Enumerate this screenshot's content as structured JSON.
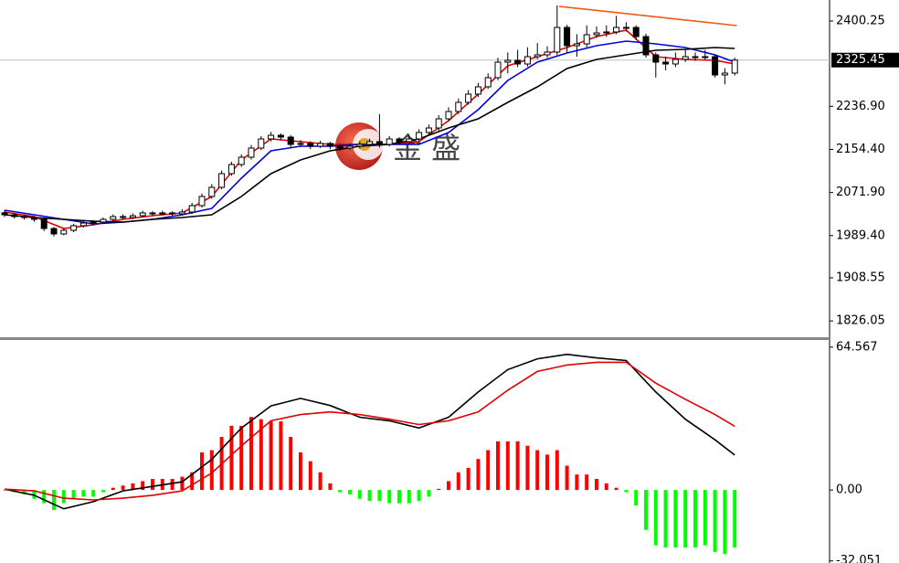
{
  "chart_data": [
    {
      "type": "candlestick",
      "up_color": "#ffffff",
      "down_color": "#000000",
      "last_price": 2325.45,
      "ylim": [
        1793,
        2440.5
      ],
      "yticks": [
        {
          "value": 2400.25,
          "label": "2400.25"
        },
        {
          "value": 2236.9,
          "label": "2236.90"
        },
        {
          "value": 2154.4,
          "label": "2154.40"
        },
        {
          "value": 2071.9,
          "label": "2071.90"
        },
        {
          "value": 1989.4,
          "label": "1989.40"
        },
        {
          "value": 1908.55,
          "label": "1908.55"
        },
        {
          "value": 1826.05,
          "label": "1826.05"
        }
      ],
      "candles": [
        [
          2033,
          2038,
          2025,
          2029.3
        ],
        [
          2029.3,
          2032,
          2022,
          2025.8
        ],
        [
          2025.8,
          2030,
          2020,
          2024.0
        ],
        [
          2024.0,
          2027,
          2016,
          2020.5
        ],
        [
          2020.5,
          2024,
          1998,
          2003.0
        ],
        [
          2003.0,
          2006,
          1988,
          1992.5
        ],
        [
          1992.5,
          2003,
          1990,
          1999.5
        ],
        [
          1999.5,
          2012,
          1996,
          2008.3
        ],
        [
          2008.3,
          2017,
          2005,
          2013.5
        ],
        [
          2013.5,
          2019,
          2010,
          2015.3
        ],
        [
          2015.3,
          2024,
          2012,
          2020.5
        ],
        [
          2020.5,
          2030,
          2017,
          2025.8
        ],
        [
          2025.8,
          2030,
          2020,
          2024.0
        ],
        [
          2024.0,
          2032,
          2021,
          2027.5
        ],
        [
          2027.5,
          2037,
          2024,
          2032.8
        ],
        [
          2032.8,
          2036,
          2027,
          2031.0
        ],
        [
          2031.0,
          2037,
          2028,
          2032.8
        ],
        [
          2032.8,
          2036,
          2027,
          2031.0
        ],
        [
          2031.0,
          2040,
          2028,
          2034.5
        ],
        [
          2034.5,
          2052,
          2031,
          2046.8
        ],
        [
          2046.8,
          2070,
          2043,
          2064.3
        ],
        [
          2064.3,
          2088,
          2060,
          2081.8
        ],
        [
          2081.8,
          2114,
          2078,
          2108.0
        ],
        [
          2108.0,
          2131,
          2104,
          2125.5
        ],
        [
          2125.5,
          2145,
          2121,
          2139.5
        ],
        [
          2139.5,
          2163,
          2135,
          2157.0
        ],
        [
          2157.0,
          2180,
          2153,
          2174.5
        ],
        [
          2174.5,
          2188,
          2170,
          2181.5
        ],
        [
          2181.5,
          2185,
          2172,
          2178.0
        ],
        [
          2178.0,
          2182,
          2158,
          2164.0
        ],
        [
          2164.0,
          2172,
          2160,
          2165.8
        ],
        [
          2165.8,
          2170,
          2155,
          2160.5
        ],
        [
          2160.5,
          2171,
          2157,
          2165.8
        ],
        [
          2165.8,
          2169,
          2155,
          2160.5
        ],
        [
          2160.5,
          2165,
          2152,
          2157.0
        ],
        [
          2157.0,
          2166,
          2153,
          2160.5
        ],
        [
          2160.5,
          2170,
          2156,
          2164.0
        ],
        [
          2164.0,
          2175,
          2160,
          2169.3
        ],
        [
          2169.3,
          2222,
          2158,
          2164.0
        ],
        [
          2164.0,
          2180,
          2160,
          2174.5
        ],
        [
          2174.5,
          2178,
          2164,
          2169.3
        ],
        [
          2169.3,
          2182,
          2165,
          2174.5
        ],
        [
          2174.5,
          2193,
          2170,
          2186.8
        ],
        [
          2186.8,
          2202,
          2182,
          2195.5
        ],
        [
          2195.5,
          2220,
          2190,
          2213.0
        ],
        [
          2213.0,
          2235,
          2208,
          2227.0
        ],
        [
          2227.0,
          2252,
          2222,
          2244.5
        ],
        [
          2244.5,
          2268,
          2240,
          2260.3
        ],
        [
          2260.3,
          2282,
          2255,
          2274.3
        ],
        [
          2274.3,
          2300,
          2270,
          2291.8
        ],
        [
          2291.8,
          2330,
          2287,
          2321.5
        ],
        [
          2321.5,
          2340,
          2300,
          2325.0
        ],
        [
          2325.0,
          2345,
          2312,
          2318.0
        ],
        [
          2318.0,
          2350,
          2313,
          2332.0
        ],
        [
          2332.0,
          2358,
          2327,
          2335.5
        ],
        [
          2335.5,
          2352,
          2330,
          2340.8
        ],
        [
          2340.8,
          2430,
          2335,
          2388.0
        ],
        [
          2388.0,
          2393,
          2340,
          2353.0
        ],
        [
          2353.0,
          2375,
          2332,
          2356.5
        ],
        [
          2356.5,
          2392,
          2350,
          2374.0
        ],
        [
          2374.0,
          2390,
          2368,
          2377.5
        ],
        [
          2377.5,
          2392,
          2370,
          2379.3
        ],
        [
          2379.3,
          2410,
          2375,
          2388.0
        ],
        [
          2388.0,
          2398,
          2380,
          2388.0
        ],
        [
          2388.0,
          2392,
          2364,
          2370.5
        ],
        [
          2370.5,
          2376,
          2330,
          2335.5
        ],
        [
          2335.5,
          2340,
          2292,
          2321.5
        ],
        [
          2321.5,
          2332,
          2306,
          2318.0
        ],
        [
          2318.0,
          2340,
          2312,
          2326.8
        ],
        [
          2326.8,
          2345,
          2322,
          2332.0
        ],
        [
          2332.0,
          2340,
          2324,
          2330.3
        ],
        [
          2330.3,
          2345,
          2325,
          2332.0
        ],
        [
          2332.0,
          2336,
          2292,
          2297.0
        ],
        [
          2297.0,
          2310,
          2279,
          2300.5
        ],
        [
          2300.5,
          2330,
          2296,
          2325.45
        ]
      ],
      "series": [
        {
          "color": "#e00000",
          "x": [
            0,
            3,
            6,
            9,
            12,
            15,
            18,
            21,
            24,
            27,
            30,
            33,
            36,
            39,
            42,
            45,
            48,
            51,
            54,
            57,
            60,
            63,
            66,
            69,
            72,
            74
          ],
          "values": [
            2034.5,
            2025.8,
            2003.0,
            2010.0,
            2020.5,
            2027.5,
            2032.8,
            2064.3,
            2134.3,
            2174.5,
            2169.3,
            2164.0,
            2164.0,
            2164.0,
            2169.3,
            2209.5,
            2260.3,
            2314.5,
            2332.0,
            2349.5,
            2370.5,
            2382.8,
            2332.0,
            2326.8,
            2325.0,
            2318.0
          ]
        },
        {
          "color": "#0000e0",
          "x": [
            0,
            3,
            6,
            9,
            12,
            15,
            18,
            21,
            24,
            27,
            30,
            33,
            36,
            39,
            42,
            45,
            48,
            51,
            54,
            57,
            60,
            63,
            66,
            69,
            72,
            74
          ],
          "values": [
            2038.0,
            2029.3,
            2020.5,
            2011.8,
            2015.3,
            2020.5,
            2029.3,
            2041.5,
            2099.3,
            2151.8,
            2160.5,
            2160.5,
            2164.0,
            2164.0,
            2164.0,
            2186.8,
            2230.5,
            2286.5,
            2321.5,
            2339.0,
            2353.0,
            2361.8,
            2356.5,
            2349.5,
            2335.5,
            2321.5
          ]
        },
        {
          "color": "#000000",
          "x": [
            0,
            3,
            6,
            9,
            12,
            15,
            18,
            21,
            24,
            27,
            30,
            33,
            36,
            39,
            42,
            45,
            48,
            51,
            54,
            57,
            60,
            63,
            66,
            69,
            72,
            74
          ],
          "values": [
            2029.3,
            2024.0,
            2020.5,
            2017.0,
            2015.3,
            2020.5,
            2024.0,
            2029.3,
            2064.3,
            2108.0,
            2134.3,
            2151.8,
            2160.5,
            2164.0,
            2174.5,
            2195.5,
            2213.0,
            2244.5,
            2274.3,
            2309.3,
            2326.8,
            2335.5,
            2344.3,
            2346.0,
            2349.5,
            2347.8
          ]
        },
        {
          "color": "#f05a14",
          "x": [
            56.2,
            74.2
          ],
          "values": [
            2428.3,
            2391.5
          ]
        }
      ]
    },
    {
      "type": "macd",
      "pos_color": "#ff0000",
      "neg_color": "#00ff00",
      "ylim": [
        -33,
        67.8
      ],
      "yticks": [
        64.567,
        {
          "value": 0,
          "label": "0.00"
        },
        -32.051
      ],
      "values": [
        0,
        -1,
        -2,
        -4,
        -6,
        -9,
        -6,
        -4,
        -3,
        -3,
        -1,
        1,
        2,
        3,
        4,
        5,
        5,
        5,
        6,
        8,
        17,
        18,
        24,
        29,
        29,
        33,
        32,
        31,
        31,
        24,
        17,
        13,
        8,
        3,
        -1,
        -2,
        -4,
        -5,
        -5,
        -6,
        -6,
        -6,
        -5,
        -3,
        0.5,
        4,
        8,
        10,
        14,
        18,
        22,
        22,
        22,
        20,
        18,
        16,
        18,
        11,
        7,
        7,
        5,
        3,
        1,
        -1,
        -7,
        -18,
        -25,
        -26,
        -26,
        -26,
        -26,
        -25,
        -28,
        -29,
        -26
      ],
      "series": [
        {
          "color": "#000000",
          "x": [
            0,
            3,
            6,
            9,
            12,
            15,
            18,
            21,
            24,
            27,
            30,
            33,
            36,
            39,
            42,
            45,
            48,
            51,
            54,
            57,
            60,
            63,
            66,
            69,
            72,
            74
          ],
          "values": [
            0.4,
            -2.4,
            -8.5,
            -5.3,
            -0.4,
            1.6,
            3.7,
            13.8,
            28,
            38,
            41.4,
            38.2,
            32.9,
            31.3,
            28,
            32.9,
            44.3,
            54.4,
            59.3,
            61.3,
            59.7,
            58.5,
            44.3,
            32,
            22.7,
            15.8
          ]
        },
        {
          "color": "#e00000",
          "x": [
            0,
            3,
            6,
            9,
            12,
            15,
            18,
            21,
            24,
            27,
            30,
            33,
            36,
            39,
            42,
            45,
            48,
            51,
            54,
            57,
            60,
            63,
            66,
            69,
            72,
            74
          ],
          "values": [
            0.4,
            -0.4,
            -3.7,
            -4.5,
            -3.7,
            -2.4,
            -0.4,
            7.7,
            19.9,
            31.3,
            34.1,
            35.3,
            34.1,
            32,
            29.6,
            31.3,
            35.3,
            45.1,
            53.6,
            56.5,
            57.7,
            57.7,
            48.3,
            41,
            34.1,
            28.8
          ]
        }
      ]
    }
  ],
  "watermark": {
    "text": "金 盛"
  }
}
